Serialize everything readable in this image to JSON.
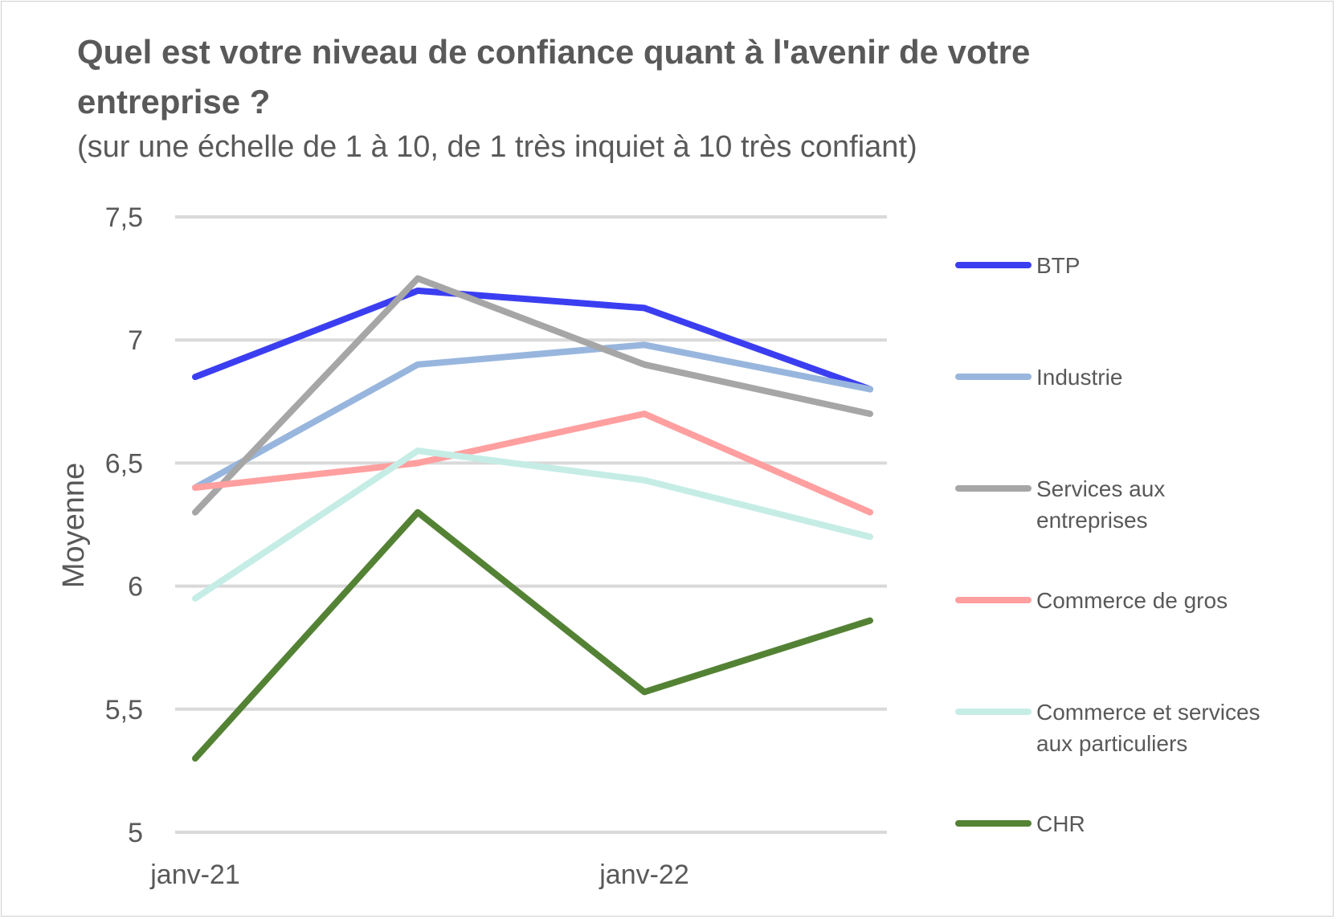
{
  "chart_data": {
    "type": "line",
    "title": "Quel est votre niveau de confiance quant à l'avenir de votre entreprise ?",
    "subtitle": "(sur une échelle de 1 à 10, de 1 très inquiet à 10 très confiant)",
    "ylabel": "Moyenne",
    "xlabel": "",
    "ylim": [
      5,
      7.5
    ],
    "yticks": [
      "5",
      "5,5",
      "6",
      "6,5",
      "7",
      "7,5"
    ],
    "ytick_values": [
      5,
      5.5,
      6,
      6.5,
      7,
      7.5
    ],
    "x_tick_labels": [
      "janv-21",
      "",
      "janv-22",
      ""
    ],
    "grid": true,
    "legend_position": "right",
    "series": [
      {
        "name": "BTP",
        "color": "#3b3ef0",
        "values": [
          6.85,
          7.2,
          7.13,
          6.8
        ]
      },
      {
        "name": "Industrie",
        "color": "#98b6dd",
        "values": [
          6.4,
          6.9,
          6.98,
          6.8
        ]
      },
      {
        "name": "Services aux entreprises",
        "legend_lines": [
          "Services aux",
          "entreprises"
        ],
        "color": "#a6a6a6",
        "values": [
          6.3,
          7.25,
          6.9,
          6.7
        ]
      },
      {
        "name": "Commerce de gros",
        "color": "#ff9f9f",
        "values": [
          6.4,
          6.5,
          6.7,
          6.3
        ]
      },
      {
        "name": "Commerce et services aux particuliers",
        "legend_lines": [
          "Commerce et services",
          "aux particuliers"
        ],
        "color": "#c5ede6",
        "values": [
          5.95,
          6.55,
          6.43,
          6.2
        ]
      },
      {
        "name": "CHR",
        "color": "#548235",
        "values": [
          5.3,
          6.3,
          5.57,
          5.86
        ]
      }
    ]
  }
}
